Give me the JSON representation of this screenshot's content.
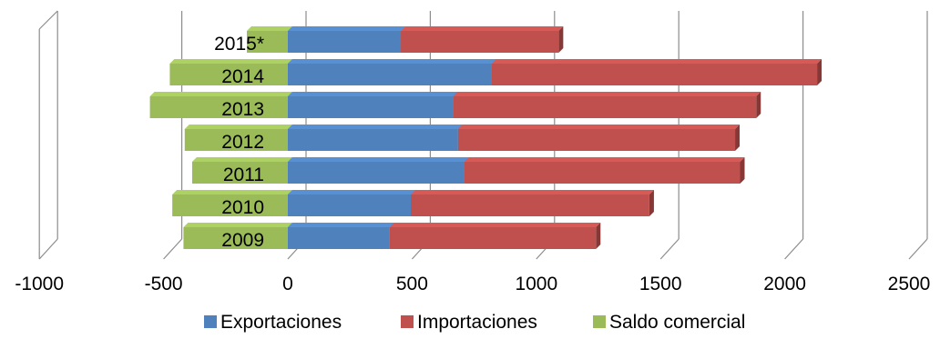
{
  "chart_data": {
    "type": "bar",
    "orientation": "horizontal",
    "stacked": true,
    "style": "3d",
    "categories": [
      "2009",
      "2010",
      "2011",
      "2012",
      "2013",
      "2014",
      "2015*"
    ],
    "series": [
      {
        "name": "Exportaciones",
        "color": "#4F81BD",
        "values": [
          410,
          495,
          710,
          685,
          665,
          820,
          455
        ]
      },
      {
        "name": "Importaciones",
        "color": "#C0504D",
        "values": [
          830,
          960,
          1110,
          1115,
          1220,
          1310,
          635
        ]
      },
      {
        "name": "Saldo comercial",
        "color": "#9BBB59",
        "values": [
          -420,
          -465,
          -385,
          -415,
          -555,
          -475,
          -165
        ]
      }
    ],
    "xlim": [
      -1000,
      2500
    ],
    "xticks": [
      "-1000",
      "-500",
      "0",
      "500",
      "1000",
      "1500",
      "2000",
      "2500"
    ],
    "grid": true,
    "legend_position": "bottom",
    "title": "",
    "xlabel": "",
    "ylabel": ""
  }
}
